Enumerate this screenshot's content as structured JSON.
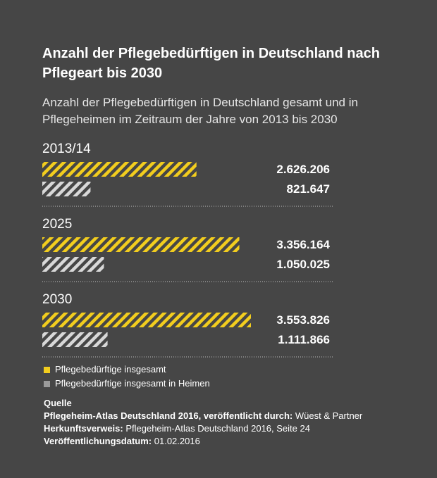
{
  "title": "Anzahl der Pflegebedürftigen in Deutschland nach Pflegeart bis 2030",
  "subtitle": "Anzahl der Pflegebedürftigen in Deutschland gesamt und in Pflegeheimen im Zeitraum der Jahre von 2013 bis 2030",
  "colors": {
    "background": "#464646",
    "gesamt": "#f2cd1e",
    "heime": "#d8d8d8",
    "divider": "#bdbdbd"
  },
  "chart_data": {
    "type": "bar",
    "orientation": "horizontal",
    "categories": [
      "2013/14",
      "2025",
      "2030"
    ],
    "series": [
      {
        "name": "Pflegebedürftige insgesamt",
        "values": [
          2626206,
          3356164,
          3553826
        ],
        "labels": [
          "2.626.206",
          "3.356.164",
          "3.553.826"
        ]
      },
      {
        "name": "Pflegebedürftige insgesamt in Heimen",
        "values": [
          821647,
          1050025,
          1111866
        ],
        "labels": [
          "821.647",
          "1.050.025",
          "1.111.866"
        ]
      }
    ],
    "xlim": [
      0,
      3553826
    ],
    "grid": false,
    "legend": "bottom-left"
  },
  "legend": [
    "Pflegebedürftige insgesamt",
    "Pflegebedürftige insgesamt in Heimen"
  ],
  "source": {
    "heading": "Quelle",
    "rows": [
      {
        "label": "Pflegeheim-Atlas Deutschland 2016, veröffentlicht durch:",
        "value": "Wüest & Partner"
      },
      {
        "label": "Herkunftsverweis:",
        "value": "Pflegeheim-Atlas Deutschland 2016, Seite 24"
      },
      {
        "label": "Veröffentlichungsdatum:",
        "value": "01.02.2016"
      }
    ]
  }
}
